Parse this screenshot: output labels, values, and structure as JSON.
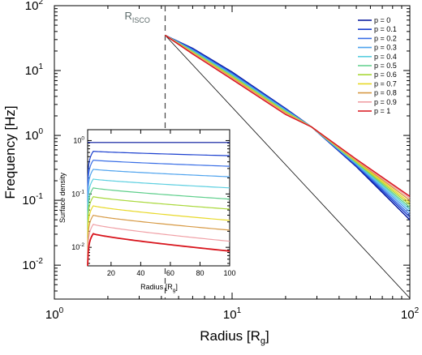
{
  "chart_data": [
    {
      "type": "line",
      "xlabel": "Radius [R",
      "xlabel_sub": "g",
      "xlabel_end": "]",
      "ylabel": "Frequency [Hz]",
      "xscale": "log",
      "yscale": "log",
      "xlim": [
        1,
        100
      ],
      "ylim": [
        0.003,
        100
      ],
      "x_ticks": [
        {
          "value": 1,
          "base": "10",
          "exp": "0"
        },
        {
          "value": 10,
          "base": "10",
          "exp": "1"
        },
        {
          "value": 100,
          "base": "10",
          "exp": "2"
        }
      ],
      "y_ticks": [
        {
          "value": 0.01,
          "base": "10",
          "exp": "-2"
        },
        {
          "value": 0.1,
          "base": "10",
          "exp": "-1"
        },
        {
          "value": 1,
          "base": "10",
          "exp": "0"
        },
        {
          "value": 10,
          "base": "10",
          "exp": "1"
        },
        {
          "value": 100,
          "base": "10",
          "exp": "2"
        }
      ],
      "isco_label": "R",
      "isco_label_sub": "ISCO",
      "isco_radius": 4.2,
      "legend_position": "top-right",
      "series": [
        {
          "name": "p = 0",
          "color": "#00139c",
          "x": [
            4.2,
            6,
            10,
            20,
            28,
            50,
            100
          ],
          "y": [
            35,
            22,
            9.5,
            2.6,
            1.35,
            0.33,
            0.05
          ]
        },
        {
          "name": "p = 0.1",
          "color": "#1a3fcf",
          "x": [
            4.2,
            6,
            10,
            20,
            28,
            50,
            100
          ],
          "y": [
            35,
            21.5,
            9.2,
            2.55,
            1.35,
            0.34,
            0.055
          ]
        },
        {
          "name": "p = 0.2",
          "color": "#3a6fe6",
          "x": [
            4.2,
            6,
            10,
            20,
            28,
            50,
            100
          ],
          "y": [
            35,
            21,
            9.0,
            2.5,
            1.35,
            0.35,
            0.06
          ]
        },
        {
          "name": "p = 0.3",
          "color": "#4fa3ee",
          "x": [
            4.2,
            6,
            10,
            20,
            28,
            50,
            100
          ],
          "y": [
            35,
            20.5,
            8.7,
            2.45,
            1.35,
            0.36,
            0.066
          ]
        },
        {
          "name": "p = 0.4",
          "color": "#5ccfe0",
          "x": [
            4.2,
            6,
            10,
            20,
            28,
            50,
            100
          ],
          "y": [
            35,
            20,
            8.5,
            2.4,
            1.35,
            0.37,
            0.072
          ]
        },
        {
          "name": "p = 0.5",
          "color": "#5fcf8c",
          "x": [
            4.2,
            6,
            10,
            20,
            28,
            50,
            100
          ],
          "y": [
            35,
            19.7,
            8.3,
            2.35,
            1.35,
            0.38,
            0.078
          ]
        },
        {
          "name": "p = 0.6",
          "color": "#a9d83a",
          "x": [
            4.2,
            6,
            10,
            20,
            28,
            50,
            100
          ],
          "y": [
            35,
            19.3,
            8.1,
            2.3,
            1.35,
            0.39,
            0.085
          ]
        },
        {
          "name": "p = 0.7",
          "color": "#e8d92a",
          "x": [
            4.2,
            6,
            10,
            20,
            28,
            50,
            100
          ],
          "y": [
            35,
            19.0,
            7.9,
            2.25,
            1.35,
            0.4,
            0.092
          ]
        },
        {
          "name": "p = 0.8",
          "color": "#d79a45",
          "x": [
            4.2,
            6,
            10,
            20,
            28,
            50,
            100
          ],
          "y": [
            35,
            18.6,
            7.7,
            2.2,
            1.35,
            0.41,
            0.1
          ]
        },
        {
          "name": "p = 0.9",
          "color": "#f0a0a6",
          "x": [
            4.2,
            6,
            10,
            20,
            28,
            50,
            100
          ],
          "y": [
            35,
            18.3,
            7.5,
            2.15,
            1.35,
            0.42,
            0.108
          ]
        },
        {
          "name": "p = 1",
          "color": "#d8141c",
          "x": [
            4.2,
            6,
            10,
            20,
            28,
            50,
            100
          ],
          "y": [
            35,
            18,
            7.3,
            2.1,
            1.35,
            0.43,
            0.115
          ]
        }
      ],
      "reference_line": {
        "color": "#000000",
        "x": [
          4.2,
          100
        ],
        "y": [
          35,
          0.0031
        ]
      }
    },
    {
      "type": "line",
      "xlabel": "Radius [R",
      "xlabel_sub": "g",
      "xlabel_end": "]",
      "ylabel": "Surface density",
      "yscale": "log",
      "xlim": [
        4.2,
        100
      ],
      "ylim": [
        0.0045,
        1.6
      ],
      "x_ticks": [
        "20",
        "40",
        "60",
        "80",
        "100"
      ],
      "y_ticks": [
        {
          "value": 0.01,
          "base": "10",
          "exp": "-2"
        },
        {
          "value": 0.1,
          "base": "10",
          "exp": "-1"
        },
        {
          "value": 1,
          "base": "10",
          "exp": "0"
        }
      ],
      "profiles": [
        {
          "color": "#00139c",
          "peak": 0.92,
          "end": 0.92
        },
        {
          "color": "#1a3fcf",
          "peak": 0.63,
          "end": 0.52
        },
        {
          "color": "#3a6fe6",
          "peak": 0.43,
          "end": 0.33
        },
        {
          "color": "#4fa3ee",
          "peak": 0.29,
          "end": 0.21
        },
        {
          "color": "#5ccfe0",
          "peak": 0.19,
          "end": 0.13
        },
        {
          "color": "#5fcf8c",
          "peak": 0.13,
          "end": 0.08
        },
        {
          "color": "#a9d83a",
          "peak": 0.089,
          "end": 0.052
        },
        {
          "color": "#e8d92a",
          "peak": 0.06,
          "end": 0.032
        },
        {
          "color": "#d79a45",
          "peak": 0.04,
          "end": 0.021
        },
        {
          "color": "#f0a0a6",
          "peak": 0.027,
          "end": 0.013
        },
        {
          "color": "#d8141c",
          "peak": 0.018,
          "end": 0.0085
        }
      ]
    }
  ]
}
